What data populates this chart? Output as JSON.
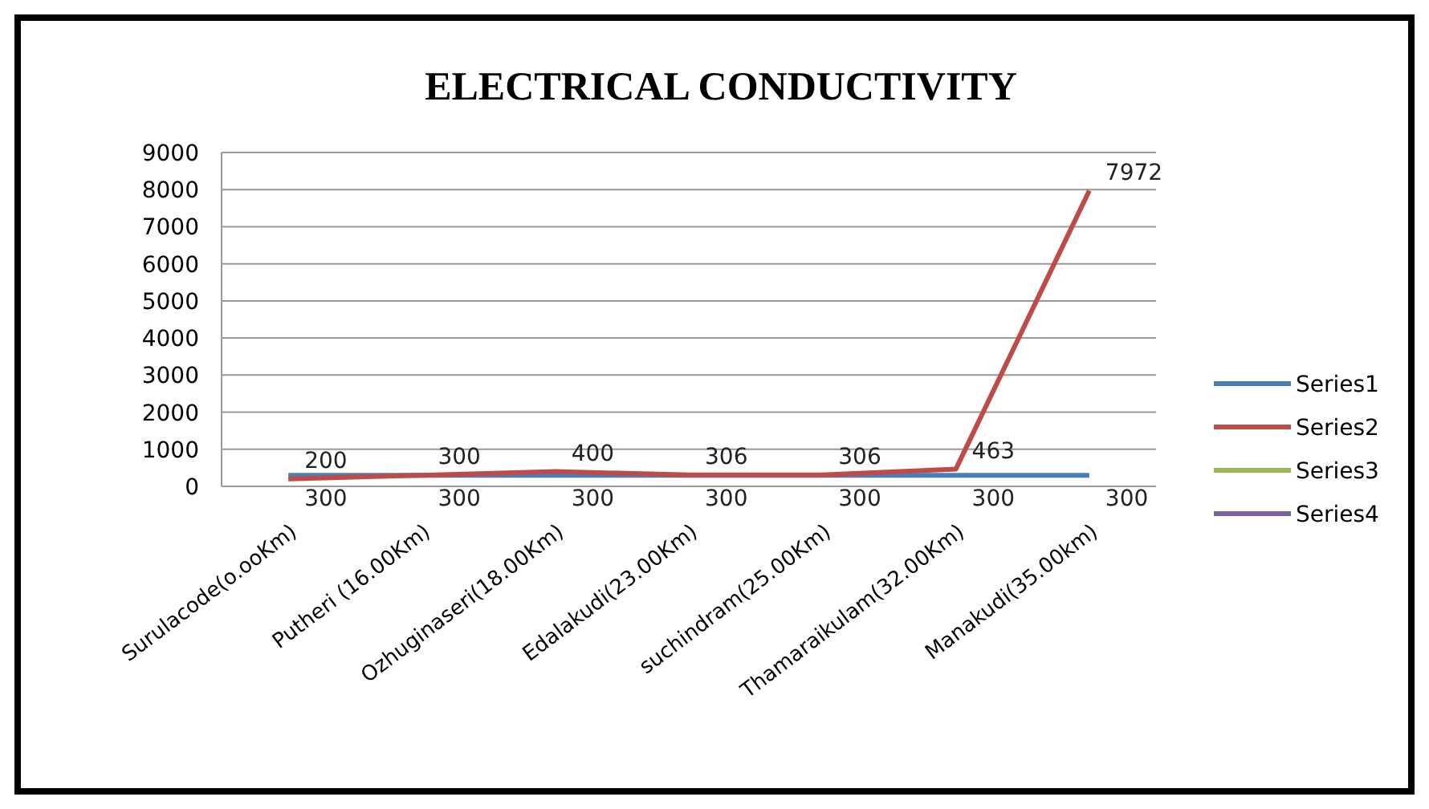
{
  "chart_data": {
    "type": "line",
    "title": "ELECTRICAL CONDUCTIVITY",
    "categories": [
      "Surulacode(o.ooKm)",
      "Putheri (16.00Km)",
      "Ozhuginaseri(18.00Km)",
      "Edalakudi(23.00Km)",
      "suchindram(25.00Km)",
      "Thamaraikulam(32.00Km)",
      "Manakudi(35.00km)"
    ],
    "series": [
      {
        "name": "Series1",
        "color": "#4a7ebb",
        "values": [
          300,
          300,
          300,
          300,
          300,
          300,
          300
        ]
      },
      {
        "name": "Series2",
        "color": "#be4b48",
        "values": [
          200,
          300,
          400,
          306,
          306,
          463,
          7972
        ]
      },
      {
        "name": "Series3",
        "color": "#98b954",
        "values": [
          null,
          null,
          null,
          null,
          null,
          null,
          null
        ]
      },
      {
        "name": "Series4",
        "color": "#7d60a0",
        "values": [
          null,
          null,
          null,
          null,
          null,
          null,
          null
        ]
      }
    ],
    "ylim": [
      0,
      9000
    ],
    "yticks": [
      0,
      1000,
      2000,
      3000,
      4000,
      5000,
      6000,
      7000,
      8000,
      9000
    ],
    "grid": "y",
    "legend": "right",
    "data_labels": true,
    "marker": "none"
  }
}
